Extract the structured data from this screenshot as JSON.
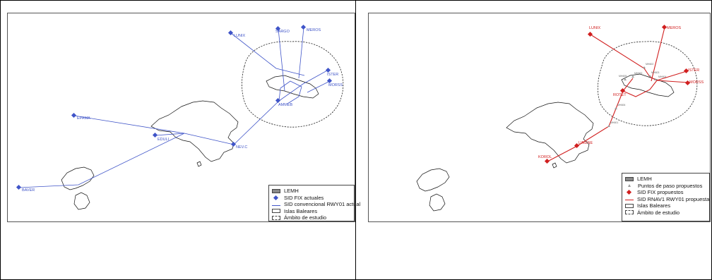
{
  "colors": {
    "blue": "#3f54c8",
    "red": "#d11f1f",
    "outline": "#111111",
    "grey": "#8a8a8a"
  },
  "left_map": {
    "waypoints": [
      "LUNIX",
      "SARGO",
      "MEROS",
      "ISTER",
      "MORSS",
      "AMMEB",
      "EPAMA",
      "EDULI",
      "NEV.C",
      "BAVER"
    ],
    "legend": {
      "lemh": "LEMH",
      "sid_fix": "SID FIX actuales",
      "sid_route": "SID convencional RWY01 actual",
      "islands": "Islas Baleares",
      "study": "Ámbito de estudio"
    }
  },
  "right_map": {
    "waypoints": [
      "LUNIX",
      "MEROS",
      "ISTER",
      "MORSS",
      "ROTET",
      "LINUNE",
      "KOROL"
    ],
    "small_points": [
      "MH600",
      "MH602",
      "MH603",
      "MH604",
      "MH605",
      "MH606",
      "MH601"
    ],
    "legend": {
      "lemh": "LEMH",
      "points": "Puntos de paso propuestos",
      "sid_fix": "SID FIX propuestos",
      "sid_route": "SID RNAV1 RWY01 propuesta",
      "islands": "Islas Baleares",
      "study": "Ámbito de estudio"
    }
  }
}
